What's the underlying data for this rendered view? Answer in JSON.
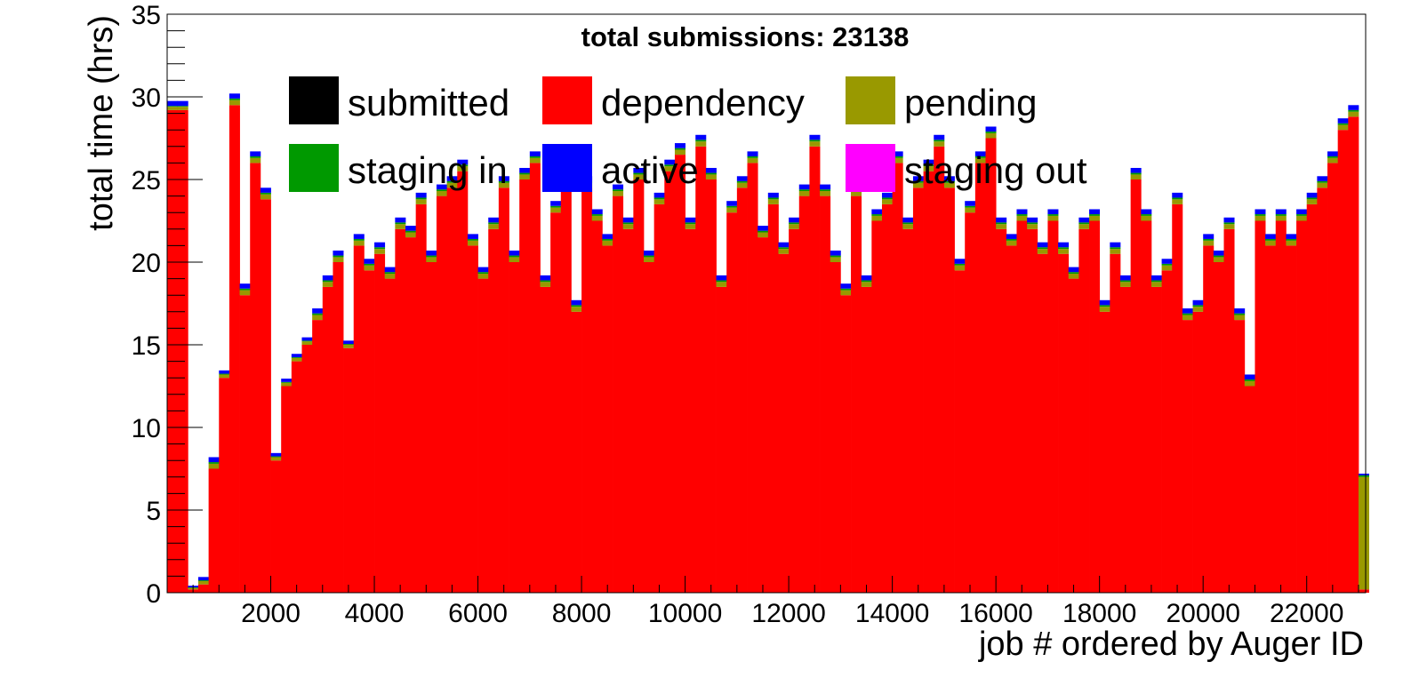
{
  "chart_data": {
    "type": "bar",
    "title": "total submissions: 23138",
    "xlabel": "job # ordered by Auger ID",
    "ylabel": "total time (hrs)",
    "xlim": [
      0,
      23138
    ],
    "ylim": [
      0,
      35
    ],
    "x_ticks": [
      2000,
      4000,
      6000,
      8000,
      10000,
      12000,
      14000,
      16000,
      18000,
      20000,
      22000
    ],
    "y_ticks": [
      0,
      5,
      10,
      15,
      20,
      25,
      30,
      35
    ],
    "stacked": true,
    "legend_position": "top",
    "legend": [
      {
        "name": "submitted",
        "color": "#000000"
      },
      {
        "name": "dependency",
        "color": "#ff0000"
      },
      {
        "name": "pending",
        "color": "#999900"
      },
      {
        "name": "staging in",
        "color": "#009900"
      },
      {
        "name": "active",
        "color": "#0000ff"
      },
      {
        "name": "staging out",
        "color": "#ff00ff"
      }
    ],
    "x": [
      100,
      300,
      500,
      700,
      900,
      1100,
      1300,
      1500,
      1700,
      1900,
      2100,
      2300,
      2500,
      2700,
      2900,
      3100,
      3300,
      3500,
      3700,
      3900,
      4100,
      4300,
      4500,
      4700,
      4900,
      5100,
      5300,
      5500,
      5700,
      5900,
      6100,
      6300,
      6500,
      6700,
      6900,
      7100,
      7300,
      7500,
      7700,
      7900,
      8100,
      8300,
      8500,
      8700,
      8900,
      9100,
      9300,
      9500,
      9700,
      9900,
      10100,
      10300,
      10500,
      10700,
      10900,
      11100,
      11300,
      11500,
      11700,
      11900,
      12100,
      12300,
      12500,
      12700,
      12900,
      13100,
      13300,
      13500,
      13700,
      13900,
      14100,
      14300,
      14500,
      14700,
      14900,
      15100,
      15300,
      15500,
      15700,
      15900,
      16100,
      16300,
      16500,
      16700,
      16900,
      17100,
      17300,
      17500,
      17700,
      17900,
      18100,
      18300,
      18500,
      18700,
      18900,
      19100,
      19300,
      19500,
      19700,
      19900,
      20100,
      20300,
      20500,
      20700,
      20900,
      21100,
      21300,
      21500,
      21700,
      21900,
      22100,
      22300,
      22500,
      22700,
      22900,
      23100
    ],
    "series": [
      {
        "name": "dependency",
        "values": [
          29.2,
          29.2,
          0.2,
          0.5,
          7.5,
          13.0,
          29.5,
          18.0,
          26.0,
          23.8,
          8.0,
          12.5,
          14.0,
          15.0,
          16.5,
          18.5,
          20.0,
          14.8,
          21.0,
          19.5,
          20.5,
          19.0,
          22.0,
          21.5,
          23.5,
          20.0,
          24.0,
          24.5,
          25.5,
          21.0,
          19.0,
          22.0,
          24.5,
          20.0,
          25.0,
          26.0,
          18.5,
          23.0,
          25.0,
          17.0,
          24.5,
          22.5,
          21.0,
          24.0,
          22.0,
          25.0,
          20.0,
          23.5,
          25.5,
          26.5,
          22.0,
          27.0,
          25.0,
          18.5,
          23.0,
          24.5,
          26.0,
          21.5,
          23.5,
          20.5,
          22.0,
          24.0,
          27.0,
          24.0,
          20.0,
          18.0,
          24.0,
          18.5,
          22.5,
          23.5,
          26.0,
          22.0,
          24.5,
          25.5,
          27.0,
          24.5,
          19.5,
          23.0,
          26.0,
          27.5,
          22.0,
          21.0,
          22.5,
          22.0,
          20.5,
          22.5,
          20.5,
          19.0,
          22.0,
          22.5,
          17.0,
          20.5,
          18.5,
          25.0,
          22.5,
          18.5,
          19.5,
          23.5,
          16.5,
          17.0,
          21.0,
          20.0,
          22.0,
          16.5,
          12.5,
          22.5,
          21.0,
          22.5,
          21.0,
          22.5,
          23.5,
          24.5,
          26.0,
          28.0,
          28.8,
          0.2
        ]
      },
      {
        "name": "pending",
        "values": [
          0.2,
          0.2,
          0.1,
          0.2,
          0.3,
          0.2,
          0.3,
          0.3,
          0.3,
          0.3,
          0.2,
          0.2,
          0.2,
          0.2,
          0.3,
          0.3,
          0.3,
          0.2,
          0.3,
          0.3,
          0.3,
          0.3,
          0.3,
          0.3,
          0.3,
          0.3,
          0.3,
          0.3,
          0.3,
          0.3,
          0.3,
          0.3,
          0.3,
          0.3,
          0.3,
          0.3,
          0.3,
          0.3,
          0.3,
          0.3,
          0.3,
          0.3,
          0.3,
          0.3,
          0.3,
          0.3,
          0.3,
          0.3,
          0.3,
          0.3,
          0.3,
          0.3,
          0.3,
          0.3,
          0.3,
          0.3,
          0.3,
          0.3,
          0.3,
          0.3,
          0.3,
          0.3,
          0.3,
          0.3,
          0.3,
          0.3,
          0.3,
          0.3,
          0.3,
          0.3,
          0.3,
          0.3,
          0.3,
          0.3,
          0.3,
          0.3,
          0.3,
          0.3,
          0.3,
          0.3,
          0.3,
          0.3,
          0.3,
          0.3,
          0.3,
          0.3,
          0.3,
          0.3,
          0.3,
          0.3,
          0.3,
          0.3,
          0.3,
          0.3,
          0.3,
          0.3,
          0.3,
          0.3,
          0.3,
          0.3,
          0.3,
          0.3,
          0.3,
          0.3,
          0.3,
          0.3,
          0.3,
          0.3,
          0.3,
          0.3,
          0.3,
          0.3,
          0.3,
          0.3,
          0.3,
          6.8
        ]
      },
      {
        "name": "staging in",
        "values": [
          0.05,
          0.05,
          0.02,
          0.05,
          0.1,
          0.05,
          0.1,
          0.1,
          0.1,
          0.1,
          0.05,
          0.05,
          0.05,
          0.05,
          0.1,
          0.1,
          0.1,
          0.05,
          0.1,
          0.1,
          0.1,
          0.1,
          0.1,
          0.1,
          0.1,
          0.1,
          0.1,
          0.1,
          0.1,
          0.1,
          0.1,
          0.1,
          0.1,
          0.1,
          0.1,
          0.1,
          0.1,
          0.1,
          0.1,
          0.1,
          0.1,
          0.1,
          0.1,
          0.1,
          0.1,
          0.1,
          0.1,
          0.1,
          0.1,
          0.1,
          0.1,
          0.1,
          0.1,
          0.1,
          0.1,
          0.1,
          0.1,
          0.1,
          0.1,
          0.1,
          0.1,
          0.1,
          0.1,
          0.1,
          0.1,
          0.1,
          0.1,
          0.1,
          0.1,
          0.1,
          0.1,
          0.1,
          0.1,
          0.1,
          0.1,
          0.1,
          0.1,
          0.1,
          0.1,
          0.1,
          0.1,
          0.1,
          0.1,
          0.1,
          0.1,
          0.1,
          0.1,
          0.1,
          0.1,
          0.1,
          0.1,
          0.1,
          0.1,
          0.1,
          0.1,
          0.1,
          0.1,
          0.1,
          0.1,
          0.1,
          0.1,
          0.1,
          0.1,
          0.1,
          0.1,
          0.1,
          0.1,
          0.1,
          0.1,
          0.1,
          0.1,
          0.1,
          0.1,
          0.1,
          0.1,
          0.1
        ]
      },
      {
        "name": "active",
        "values": [
          0.3,
          0.3,
          0.1,
          0.2,
          0.3,
          0.2,
          0.3,
          0.3,
          0.3,
          0.3,
          0.2,
          0.2,
          0.2,
          0.2,
          0.3,
          0.3,
          0.3,
          0.2,
          0.3,
          0.3,
          0.3,
          0.3,
          0.3,
          0.3,
          0.3,
          0.3,
          0.3,
          0.3,
          0.3,
          0.3,
          0.3,
          0.3,
          0.3,
          0.3,
          0.3,
          0.3,
          0.3,
          0.3,
          0.3,
          0.3,
          0.3,
          0.3,
          0.3,
          0.3,
          0.3,
          0.3,
          0.3,
          0.3,
          0.3,
          0.3,
          0.3,
          0.3,
          0.3,
          0.3,
          0.3,
          0.3,
          0.3,
          0.3,
          0.3,
          0.3,
          0.3,
          0.3,
          0.3,
          0.3,
          0.3,
          0.3,
          0.3,
          0.3,
          0.3,
          0.3,
          0.3,
          0.3,
          0.3,
          0.3,
          0.3,
          0.3,
          0.3,
          0.3,
          0.3,
          0.3,
          0.3,
          0.3,
          0.3,
          0.3,
          0.3,
          0.3,
          0.3,
          0.3,
          0.3,
          0.3,
          0.3,
          0.3,
          0.3,
          0.3,
          0.3,
          0.3,
          0.3,
          0.3,
          0.3,
          0.3,
          0.3,
          0.3,
          0.3,
          0.3,
          0.3,
          0.3,
          0.3,
          0.3,
          0.3,
          0.3,
          0.3,
          0.3,
          0.3,
          0.3,
          0.3,
          0.1
        ]
      }
    ]
  }
}
